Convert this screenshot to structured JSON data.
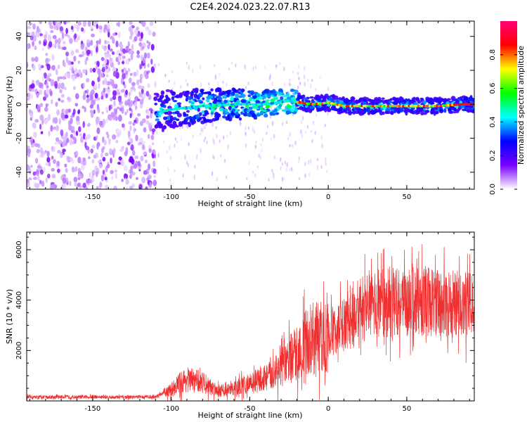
{
  "title": "C2E4.2024.023.22.07.R13",
  "chart_data": [
    {
      "type": "heatmap",
      "xlabel": "Height of straight line (km)",
      "ylabel": "Frequency (Hz)",
      "xlim": [
        -192,
        93
      ],
      "ylim": [
        -50,
        49
      ],
      "x_ticks": [
        -150,
        -100,
        -50,
        0,
        50
      ],
      "y_ticks": [
        -40,
        -20,
        0,
        20,
        40
      ],
      "colorbar": {
        "label": "Normalized spectral amplitude",
        "range": [
          0,
          1
        ],
        "ticks": [
          "0.0",
          "0.2",
          "0.4",
          "0.6",
          "0.8"
        ],
        "tick_values": [
          0.0,
          0.2,
          0.4,
          0.6,
          0.8
        ],
        "colors": [
          "#ffffff",
          "#7a00ff",
          "#0000ff",
          "#00ffff",
          "#00ff00",
          "#ffff00",
          "#ff0000",
          "#ff0077"
        ]
      },
      "regions": [
        {
          "x_range": [
            -192,
            -110
          ],
          "freq_range": [
            -50,
            49
          ],
          "amplitude": 0.1
        },
        {
          "x_range": [
            -110,
            -20
          ],
          "freq_range": [
            -13,
            13
          ],
          "amplitude": 0.3
        },
        {
          "x_range": [
            -20,
            93
          ],
          "freq_range": [
            -5,
            5
          ],
          "amplitude": 0.75
        }
      ],
      "ridge": [
        {
          "x": -110,
          "freq": -5
        },
        {
          "x": -100,
          "freq": -3
        },
        {
          "x": -80,
          "freq": -1
        },
        {
          "x": -60,
          "freq": 0
        },
        {
          "x": -40,
          "freq": 0
        },
        {
          "x": -25,
          "freq": 2
        },
        {
          "x": -10,
          "freq": 0
        },
        {
          "x": 0,
          "freq": 1
        },
        {
          "x": 10,
          "freq": -1
        },
        {
          "x": 30,
          "freq": -1
        },
        {
          "x": 50,
          "freq": -1
        },
        {
          "x": 70,
          "freq": -1
        },
        {
          "x": 85,
          "freq": 0
        },
        {
          "x": 93,
          "freq": 0
        }
      ]
    },
    {
      "type": "line",
      "xlabel": "Height of straight line (km)",
      "ylabel": "SNR (10 * v/v)",
      "xlim": [
        -192,
        93
      ],
      "ylim": [
        0,
        6700
      ],
      "x_ticks": [
        -150,
        -100,
        -50,
        0,
        50
      ],
      "y_ticks": [
        2000,
        4000,
        6000
      ],
      "color": "#f03030",
      "series": [
        {
          "x": [
            -192,
            -180,
            -170,
            -160,
            -150,
            -140,
            -130,
            -120,
            -110,
            -105,
            -100,
            -95,
            -90,
            -85,
            -80,
            -75,
            -70,
            -65,
            -60,
            -55,
            -50,
            -45,
            -40,
            -35,
            -30,
            -25,
            -20,
            -15,
            -10,
            -5,
            0,
            5,
            10,
            15,
            20,
            25,
            30,
            35,
            40,
            45,
            50,
            55,
            60,
            65,
            70,
            75,
            80,
            85,
            90,
            93
          ],
          "values": [
            150,
            150,
            160,
            150,
            160,
            150,
            150,
            160,
            170,
            300,
            450,
            700,
            850,
            800,
            750,
            550,
            450,
            400,
            500,
            600,
            700,
            800,
            900,
            1100,
            1300,
            1600,
            1900,
            2200,
            2500,
            2500,
            2600,
            2900,
            3000,
            3200,
            3400,
            3700,
            3800,
            3900,
            3900,
            3950,
            3900,
            3950,
            4000,
            3950,
            3900,
            3850,
            3800,
            3700,
            3900,
            3700
          ]
        }
      ]
    }
  ]
}
